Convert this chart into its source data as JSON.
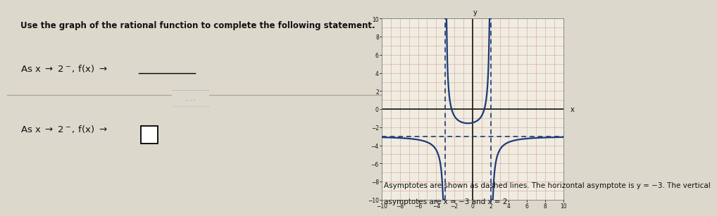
{
  "title_text": "Use the graph of the rational function to complete the following statement.",
  "horiz_asymptote": -3,
  "vert_asymptotes": [
    -3,
    2
  ],
  "xmin": -10,
  "xmax": 10,
  "ymin": -10,
  "ymax": 10,
  "grid_color": "#d4a0a0",
  "axis_color": "#222222",
  "curve_color": "#1a3a7a",
  "asymptote_dash_color": "#1a3a7a",
  "background_left": "#ddd8cc",
  "graph_bg": "#f0ece0",
  "text_color": "#111111",
  "font_size_title": 8.5,
  "font_size_body": 9.5,
  "k": -9,
  "description_text1": "Asymptotes are shown as dashed lines. The horizontal asymptote is y = −3. The vertical",
  "description_text2": "asymptotes are x = −3 and x = 2."
}
